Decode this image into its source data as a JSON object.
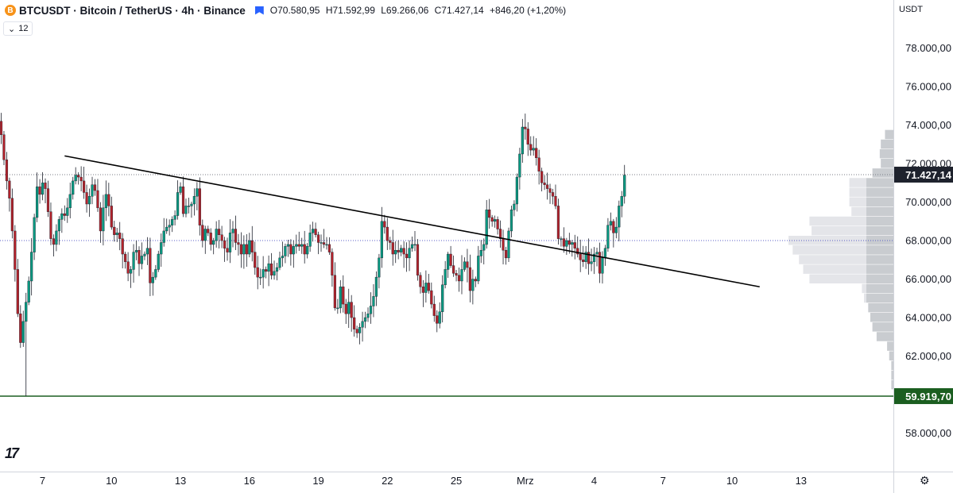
{
  "header": {
    "coin_icon": "B",
    "symbol": "BTCUSDT · Bitcoin / TetherUS · 4h · Binance",
    "open": "O70.580,95",
    "high": "H71.592,99",
    "low": "L69.266,06",
    "close": "C71.427,14",
    "change": "+846,20 (+1,20%)"
  },
  "indicator": {
    "chevron": "⌄",
    "label": "12"
  },
  "price_axis": {
    "currency": "USDT"
  },
  "footer": {
    "logo": "17",
    "settings_icon": "⚙"
  },
  "colors": {
    "up": "#089981",
    "down": "#b2222b",
    "support": "#1b5e20",
    "trendline": "#000000"
  },
  "chart_data": {
    "type": "candlestick",
    "title": "BTCUSDT · Bitcoin / TetherUS · 4h · Binance",
    "ylim": [
      56000,
      80500
    ],
    "y_ticks": [
      "78.000,00",
      "76.000,00",
      "74.000,00",
      "72.000,00",
      "70.000,00",
      "68.000,00",
      "66.000,00",
      "64.000,00",
      "62.000,00",
      "58.000,00"
    ],
    "y_tick_values": [
      78000,
      76000,
      74000,
      72000,
      70000,
      68000,
      66000,
      64000,
      62000,
      58000
    ],
    "x_ticks": [
      "7",
      "10",
      "13",
      "16",
      "19",
      "22",
      "25",
      "Mrz",
      "4",
      "7",
      "10",
      "13"
    ],
    "x_tick_bar_index": [
      15,
      40,
      65,
      90,
      115,
      140,
      165,
      190,
      215,
      240,
      265,
      290
    ],
    "last_price": {
      "label": "71.427,14",
      "value": 71427.14
    },
    "support_level": {
      "label": "59.919,70",
      "value": 59919.7
    },
    "dotted_levels": [
      71427.14,
      68000
    ],
    "trendline": {
      "from": {
        "bar": 23,
        "price": 72400
      },
      "to": {
        "bar": 275,
        "price": 65600
      }
    },
    "volume_profile": {
      "bins": [
        {
          "price": 73500,
          "volume": 0.08
        },
        {
          "price": 73000,
          "volume": 0.12
        },
        {
          "price": 72500,
          "volume": 0.13
        },
        {
          "price": 72000,
          "volume": 0.12
        },
        {
          "price": 71500,
          "volume": 0.2
        },
        {
          "price": 71000,
          "volume": 0.42
        },
        {
          "price": 70500,
          "volume": 0.42
        },
        {
          "price": 70000,
          "volume": 0.42
        },
        {
          "price": 69500,
          "volume": 0.4
        },
        {
          "price": 69000,
          "volume": 0.8
        },
        {
          "price": 68500,
          "volume": 0.78
        },
        {
          "price": 68000,
          "volume": 1.0
        },
        {
          "price": 67500,
          "volume": 0.96
        },
        {
          "price": 67000,
          "volume": 0.9
        },
        {
          "price": 66500,
          "volume": 0.86
        },
        {
          "price": 66000,
          "volume": 0.8
        },
        {
          "price": 65500,
          "volume": 0.3
        },
        {
          "price": 65000,
          "volume": 0.28
        },
        {
          "price": 64500,
          "volume": 0.24
        },
        {
          "price": 64000,
          "volume": 0.22
        },
        {
          "price": 63500,
          "volume": 0.2
        },
        {
          "price": 63000,
          "volume": 0.16
        },
        {
          "price": 62500,
          "volume": 0.06
        },
        {
          "price": 62000,
          "volume": 0.04
        },
        {
          "price": 61500,
          "volume": 0.02
        },
        {
          "price": 61000,
          "volume": 0.02
        },
        {
          "price": 60500,
          "volume": 0.02
        }
      ]
    },
    "closes": [
      73500,
      72200,
      71100,
      70200,
      68500,
      66500,
      64200,
      62700,
      63800,
      64800,
      65900,
      67400,
      69200,
      70800,
      70400,
      71000,
      70700,
      69500,
      68100,
      67800,
      68500,
      69100,
      69400,
      69300,
      69700,
      70400,
      71100,
      71400,
      71300,
      71100,
      70500,
      69900,
      70300,
      70900,
      70600,
      69700,
      68500,
      69700,
      70400,
      69800,
      68700,
      68300,
      68400,
      68100,
      67300,
      66900,
      66300,
      66500,
      67400,
      67500,
      66800,
      67200,
      67300,
      67600,
      65800,
      66100,
      66500,
      67300,
      67900,
      68500,
      68700,
      68800,
      69100,
      69300,
      70500,
      70800,
      69400,
      69800,
      69800,
      69900,
      70300,
      70700,
      68800,
      68000,
      68600,
      68400,
      67800,
      68000,
      68600,
      68300,
      68000,
      67600,
      67400,
      68400,
      68600,
      67900,
      67800,
      67300,
      67800,
      67300,
      68000,
      67400,
      66600,
      66100,
      66100,
      66500,
      66400,
      66800,
      66200,
      66400,
      66600,
      67100,
      67200,
      67700,
      67800,
      67300,
      67700,
      67800,
      67700,
      67800,
      67300,
      67700,
      68400,
      68600,
      68300,
      67900,
      67900,
      67800,
      67800,
      67400,
      66200,
      64500,
      64500,
      65600,
      64700,
      64200,
      64800,
      64000,
      63400,
      63200,
      63500,
      63800,
      64000,
      64200,
      64600,
      65100,
      66100,
      67100,
      69000,
      68700,
      68000,
      67900,
      67300,
      67500,
      67400,
      67600,
      67300,
      67100,
      67600,
      67800,
      67800,
      66200,
      65600,
      65300,
      65800,
      65400,
      64700,
      64100,
      63700,
      64300,
      65700,
      66500,
      67300,
      66700,
      66300,
      66200,
      65900,
      66500,
      66900,
      66600,
      65400,
      66000,
      65900,
      67200,
      67500,
      67800,
      69600,
      69200,
      69000,
      69100,
      68600,
      68100,
      67500,
      67100,
      68500,
      69600,
      69900,
      71300,
      72500,
      73900,
      73800,
      73000,
      72700,
      72800,
      72300,
      71600,
      71000,
      70900,
      70700,
      70500,
      70300,
      69800,
      68100,
      68100,
      67700,
      68000,
      67800,
      67900,
      67600,
      67300,
      67000,
      66900,
      67400,
      66800,
      66900,
      67300,
      67400,
      66300,
      67100,
      67600,
      68800,
      69000,
      68400,
      68700,
      69800,
      70300,
      71400
    ]
  }
}
